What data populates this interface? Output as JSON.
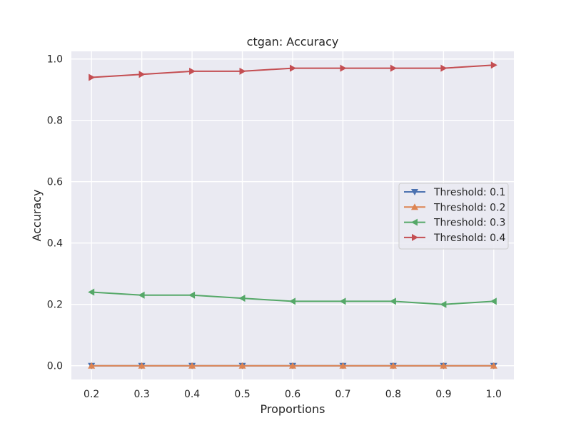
{
  "chart_data": {
    "type": "line",
    "title": "ctgan: Accuracy",
    "xlabel": "Proportions",
    "ylabel": "Accuracy",
    "x": [
      0.2,
      0.3,
      0.4,
      0.5,
      0.6,
      0.7,
      0.8,
      0.9,
      1.0
    ],
    "xticks": [
      "0.2",
      "0.3",
      "0.4",
      "0.5",
      "0.6",
      "0.7",
      "0.8",
      "0.9",
      "1.0"
    ],
    "yticks": [
      "0.0",
      "0.2",
      "0.4",
      "0.6",
      "0.8",
      "1.0"
    ],
    "xlim": [
      0.16,
      1.04
    ],
    "ylim": [
      -0.045,
      1.025
    ],
    "grid": true,
    "legend_position": "center-right",
    "background_color": "#eaeaf2",
    "series": [
      {
        "name": "Threshold: 0.1",
        "color": "#4c72b0",
        "marker": "triangle-down",
        "values": [
          0,
          0,
          0,
          0,
          0,
          0,
          0,
          0,
          0
        ]
      },
      {
        "name": "Threshold: 0.2",
        "color": "#dd8452",
        "marker": "triangle-up",
        "values": [
          0,
          0,
          0,
          0,
          0,
          0,
          0,
          0,
          0
        ]
      },
      {
        "name": "Threshold: 0.3",
        "color": "#55a868",
        "marker": "triangle-left",
        "values": [
          0.24,
          0.23,
          0.23,
          0.22,
          0.21,
          0.21,
          0.21,
          0.2,
          0.21
        ]
      },
      {
        "name": "Threshold: 0.4",
        "color": "#c44e52",
        "marker": "triangle-right",
        "values": [
          0.94,
          0.95,
          0.96,
          0.96,
          0.97,
          0.97,
          0.97,
          0.97,
          0.98
        ]
      }
    ]
  }
}
